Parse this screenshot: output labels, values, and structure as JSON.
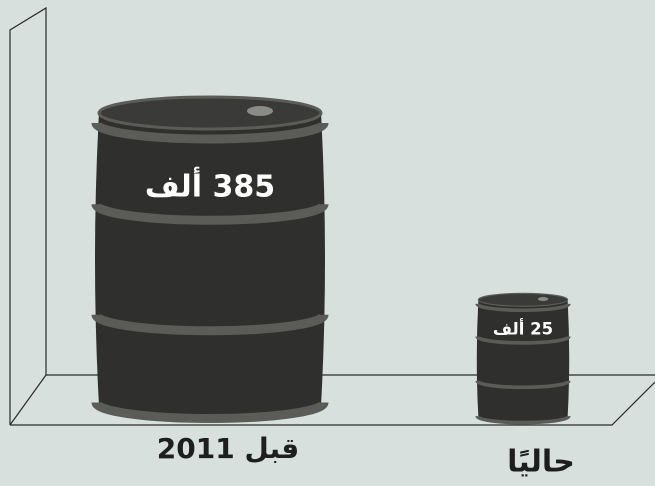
{
  "chart_data": {
    "type": "pictorial-barrel",
    "categories": [
      "قبل 2011",
      "حاليًا"
    ],
    "values": [
      385,
      25
    ],
    "value_labels": [
      "385 ألف",
      "25 ألف"
    ],
    "color": "#2f2f2d"
  }
}
